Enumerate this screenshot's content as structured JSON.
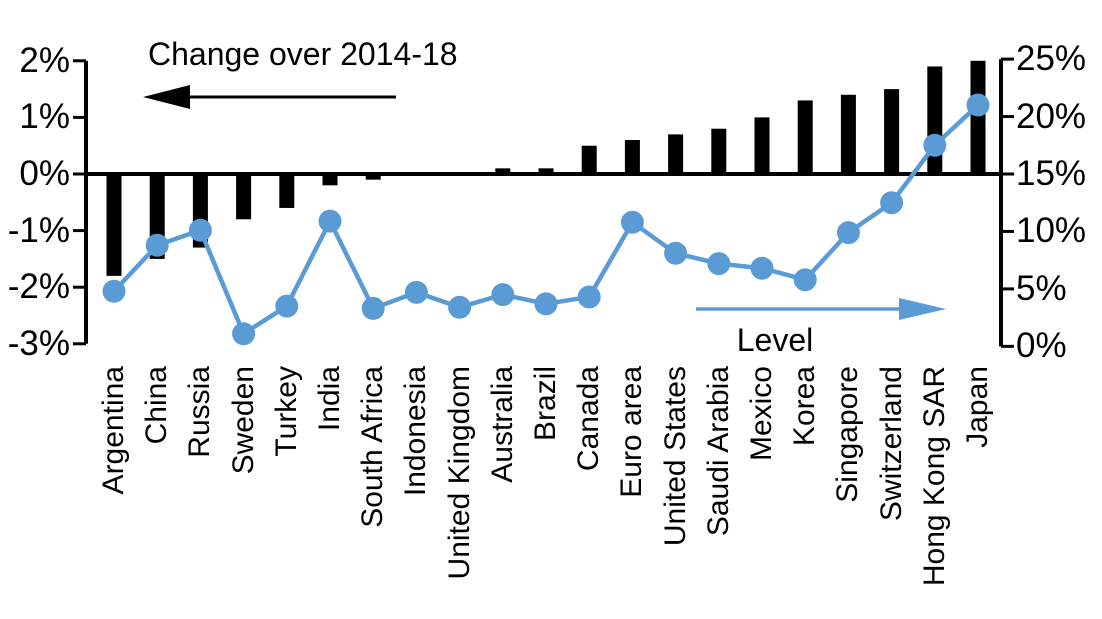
{
  "chart_data": {
    "type": "combo-bar-line",
    "categories": [
      "Argentina",
      "China",
      "Russia",
      "Sweden",
      "Turkey",
      "India",
      "South Africa",
      "Indonesia",
      "United Kingdom",
      "Australia",
      "Brazil",
      "Canada",
      "Euro area",
      "United States",
      "Saudi Arabia",
      "Mexico",
      "Korea",
      "Singapore",
      "Switzerland",
      "Hong Kong SAR",
      "Japan"
    ],
    "series": [
      {
        "name": "Change over 2014-18",
        "type": "bar",
        "axis": "left",
        "color": "#000000",
        "values": [
          -1.8,
          -1.5,
          -1.3,
          -0.8,
          -0.6,
          -0.2,
          -0.1,
          0,
          0,
          0.1,
          0.1,
          0.5,
          0.6,
          0.7,
          0.8,
          1.0,
          1.3,
          1.4,
          1.5,
          1.9,
          2.0
        ]
      },
      {
        "name": "Level",
        "type": "line",
        "axis": "right",
        "color": "#5B9BD5",
        "values": [
          4.8,
          8.8,
          10.1,
          1.1,
          3.5,
          10.9,
          3.3,
          4.7,
          3.4,
          4.5,
          3.7,
          4.3,
          10.8,
          8.1,
          7.2,
          6.8,
          5.8,
          9.9,
          12.5,
          17.5,
          21.0
        ]
      }
    ],
    "left_axis": {
      "min": -3,
      "max": 2,
      "tick_values": [
        2,
        1,
        0,
        -1,
        -2,
        -3
      ],
      "tick_labels": [
        "2%",
        "1%",
        "0%",
        "-1%",
        "-2%",
        "-3%"
      ]
    },
    "right_axis": {
      "min": 0,
      "max": 25,
      "tick_values": [
        25,
        20,
        15,
        10,
        5,
        0
      ],
      "tick_labels": [
        "25%",
        "20%",
        "15%",
        "10%",
        "5%",
        "0%"
      ]
    },
    "annotations": {
      "change_label": "Change over 2014-18",
      "change_arrow_icon": "arrow-left-icon",
      "level_label": "Level",
      "level_arrow_icon": "arrow-right-icon"
    },
    "grid": false,
    "legend_position": "in-plot-annotations"
  }
}
